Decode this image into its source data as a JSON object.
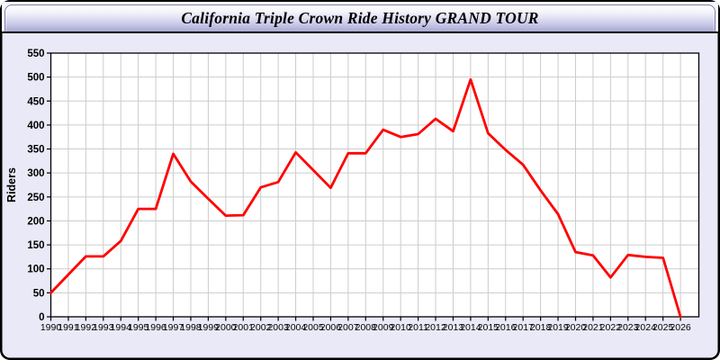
{
  "window": {
    "title": "California Triple Crown Ride History GRAND TOUR"
  },
  "colors": {
    "window_background": "#e9e9f7",
    "header_gradient_top": "#ffffff",
    "header_gradient_bottom": "#a9a9d2",
    "border": "#000000",
    "plot_background": "#ffffff",
    "gridline": "#cccccc",
    "line": "#ff0000",
    "text": "#000000"
  },
  "chart_data": {
    "type": "line",
    "title": "California Triple Crown Ride History GRAND TOUR",
    "xlabel": "",
    "ylabel": "Riders",
    "legend": "none",
    "grid": true,
    "ylim": [
      0,
      550
    ],
    "yticks": [
      0,
      50,
      100,
      150,
      200,
      250,
      300,
      350,
      400,
      450,
      500,
      550
    ],
    "x": [
      1990,
      1991,
      1992,
      1993,
      1994,
      1995,
      1996,
      1997,
      1998,
      1999,
      2000,
      2001,
      2002,
      2003,
      2004,
      2005,
      2006,
      2007,
      2008,
      2009,
      2010,
      2011,
      2012,
      2013,
      2014,
      2015,
      2016,
      2017,
      2018,
      2019,
      2020,
      2021,
      2022,
      2023,
      2024,
      2025,
      2026
    ],
    "series": [
      {
        "name": "Riders",
        "color": "#ff0000",
        "values": [
          50,
          88,
          126,
          126,
          158,
          225,
          225,
          340,
          282,
          246,
          211,
          212,
          270,
          281,
          343,
          306,
          269,
          341,
          341,
          390,
          375,
          381,
          413,
          387,
          495,
          383,
          348,
          317,
          264,
          214,
          135,
          128,
          82,
          129,
          125,
          123,
          0
        ]
      }
    ]
  }
}
